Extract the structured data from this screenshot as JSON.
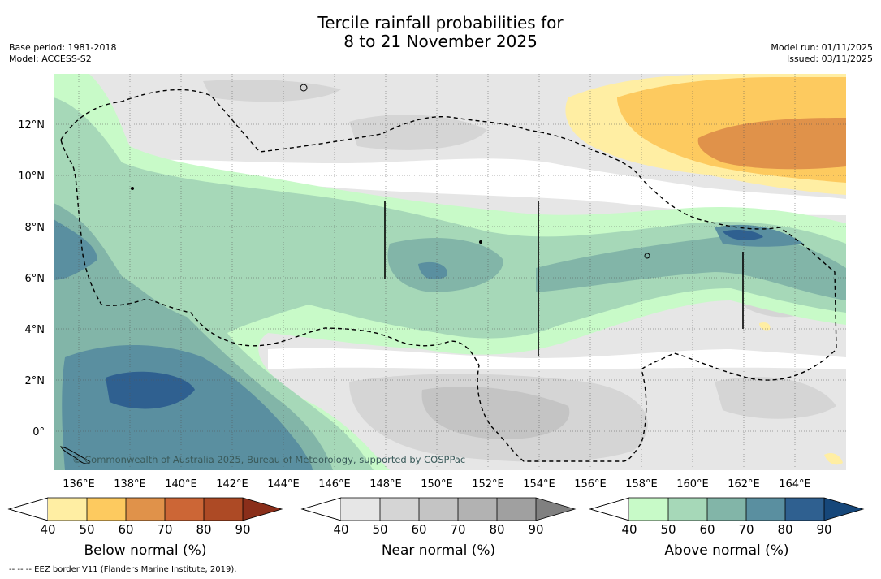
{
  "title": {
    "line1": "Tercile rainfall probabilities for",
    "line2": "8 to 21 November 2025"
  },
  "meta_left": {
    "base_period": "Base period: 1981-2018",
    "model": "Model: ACCESS-S2"
  },
  "meta_right": {
    "model_run": "Model run: 01/11/2025",
    "issued": "Issued: 03/11/2025"
  },
  "map": {
    "lat_labels": [
      "12°N",
      "10°N",
      "8°N",
      "6°N",
      "4°N",
      "2°N",
      "0°"
    ],
    "lon_labels": [
      "136°E",
      "138°E",
      "140°E",
      "142°E",
      "144°E",
      "146°E",
      "148°E",
      "150°E",
      "152°E",
      "154°E",
      "156°E",
      "158°E",
      "160°E",
      "162°E",
      "164°E"
    ],
    "copyright": "© Commonwealth of Australia 2025, Bureau of Meteorology, supported by COSPPac"
  },
  "colorbars": {
    "below": {
      "title": "Below normal (%)",
      "ticks": [
        "40",
        "50",
        "60",
        "70",
        "80",
        "90"
      ],
      "colors": [
        "#ffeea3",
        "#fdca5f",
        "#e0924a",
        "#cc6636",
        "#ad4a25",
        "#8a2e1a"
      ]
    },
    "near": {
      "title": "Near normal (%)",
      "ticks": [
        "40",
        "50",
        "60",
        "70",
        "80",
        "90"
      ],
      "colors": [
        "#e6e6e6",
        "#d5d5d5",
        "#c4c4c4",
        "#b2b2b2",
        "#a0a0a0",
        "#808080"
      ]
    },
    "above": {
      "title": "Above normal (%)",
      "ticks": [
        "40",
        "50",
        "60",
        "70",
        "80",
        "90"
      ],
      "colors": [
        "#c8fac8",
        "#a6d8b8",
        "#82b5a8",
        "#5a8fa0",
        "#2f6090",
        "#16477a"
      ]
    }
  },
  "footnote": "-- -- -- EEZ border V11 (Flanders Marine Institute, 2019)."
}
